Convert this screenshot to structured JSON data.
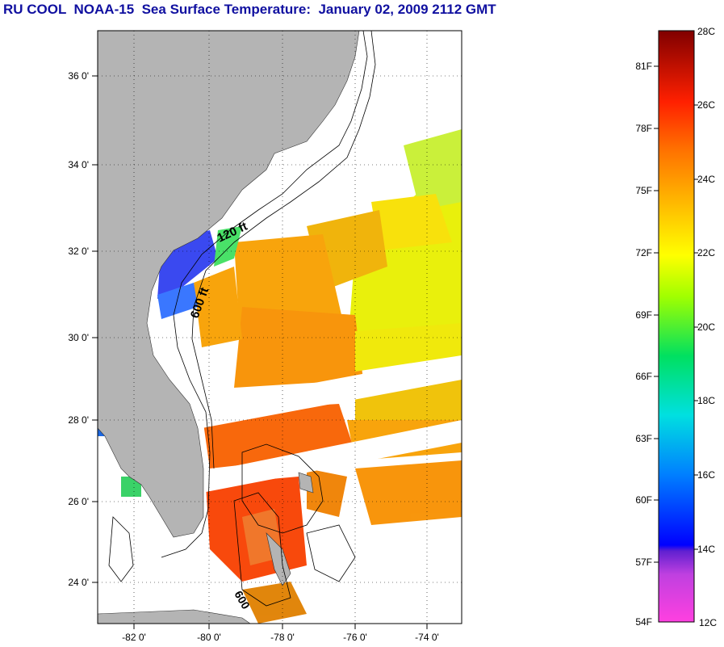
{
  "title": "RU COOL  NOAA-15  Sea Surface Temperature:  January 02, 2009 2112 GMT",
  "map": {
    "lat_ticks": [
      {
        "label": "36 0'",
        "lat": 36
      },
      {
        "label": "34 0'",
        "lat": 34
      },
      {
        "label": "32 0'",
        "lat": 32
      },
      {
        "label": "30 0'",
        "lat": 30
      },
      {
        "label": "28 0'",
        "lat": 28
      },
      {
        "label": "26 0'",
        "lat": 26
      },
      {
        "label": "24 0'",
        "lat": 24
      }
    ],
    "lon_ticks": [
      {
        "label": "-82 0'",
        "lon": -82
      },
      {
        "label": "-80 0'",
        "lon": -80
      },
      {
        "label": "-78 0'",
        "lon": -78
      },
      {
        "label": "-76 0'",
        "lon": -76
      },
      {
        "label": "-74 0'",
        "lon": -74
      }
    ],
    "contour_labels": [
      "120 ft",
      "600 ft",
      "600"
    ],
    "land_color": "#b4b4b4",
    "grid": true
  },
  "colorbar": {
    "fahrenheit_labels": [
      "81F",
      "78F",
      "75F",
      "72F",
      "69F",
      "66F",
      "63F",
      "60F",
      "57F",
      "54F"
    ],
    "celsius_labels": [
      "28C",
      "26C",
      "24C",
      "22C",
      "20C",
      "18C",
      "16C",
      "14C",
      "12C"
    ],
    "range_c": [
      12,
      28
    ]
  }
}
